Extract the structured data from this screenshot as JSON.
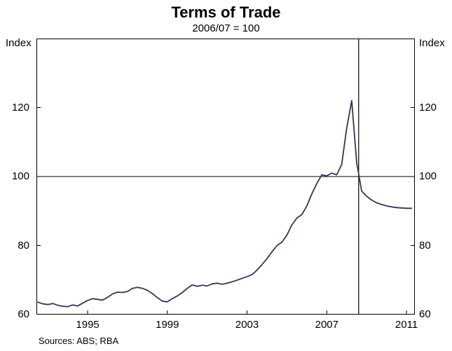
{
  "title": "Terms of Trade",
  "subtitle": "2006/07 = 100",
  "axis": {
    "left_unit": "Index",
    "right_unit": "Index",
    "y_tick_labels": [
      "120",
      "100",
      "80",
      "60"
    ],
    "x_tick_labels": [
      "1995",
      "1999",
      "2003",
      "2007",
      "2011"
    ]
  },
  "footer": {
    "sources": "Sources: ABS; RBA"
  },
  "chart_data": {
    "type": "line",
    "title": "Terms of Trade",
    "subtitle": "2006/07 = 100",
    "ylabel": "Index",
    "ylabel_right": "Index",
    "ylim": [
      60,
      140
    ],
    "xlim": [
      1992.43,
      2011.42
    ],
    "yticks": [
      60,
      80,
      100,
      120
    ],
    "xticks": [
      1995,
      1999,
      2003,
      2007,
      2011
    ],
    "grid": "off",
    "legend": "none",
    "reference_lines": {
      "horizontal_y": 100,
      "vertical_x": 2008.6
    },
    "line_color": "#35355a",
    "axis_color": "#000000",
    "series": [
      {
        "name": "Terms of trade (quarterly)",
        "x": [
          1992.5,
          1992.75,
          1993.0,
          1993.25,
          1993.5,
          1993.75,
          1994.0,
          1994.25,
          1994.5,
          1994.75,
          1995.0,
          1995.25,
          1995.5,
          1995.75,
          1996.0,
          1996.25,
          1996.5,
          1996.75,
          1997.0,
          1997.25,
          1997.5,
          1997.75,
          1998.0,
          1998.25,
          1998.5,
          1998.75,
          1999.0,
          1999.25,
          1999.5,
          1999.75,
          2000.0,
          2000.25,
          2000.5,
          2000.75,
          2001.0,
          2001.25,
          2001.5,
          2001.75,
          2002.0,
          2002.25,
          2002.5,
          2002.75,
          2003.0,
          2003.25,
          2003.5,
          2003.75,
          2004.0,
          2004.25,
          2004.5,
          2004.75,
          2005.0,
          2005.25,
          2005.5,
          2005.75,
          2006.0,
          2006.25,
          2006.5,
          2006.75,
          2007.0,
          2007.25,
          2007.5,
          2007.75,
          2008.0,
          2008.25,
          2008.5,
          2008.75,
          2009.0,
          2009.25,
          2009.5,
          2009.75,
          2010.0,
          2010.25,
          2010.5,
          2010.75,
          2011.0,
          2011.25
        ],
        "y": [
          63.6,
          63.1,
          62.9,
          63.2,
          62.7,
          62.4,
          62.3,
          62.8,
          62.5,
          63.3,
          64.1,
          64.6,
          64.4,
          64.2,
          65.0,
          66.0,
          66.5,
          66.4,
          66.7,
          67.6,
          67.9,
          67.6,
          67.0,
          66.1,
          64.9,
          63.9,
          63.7,
          64.6,
          65.4,
          66.4,
          67.6,
          68.6,
          68.2,
          68.5,
          68.3,
          68.9,
          69.1,
          68.8,
          69.1,
          69.5,
          70.0,
          70.5,
          71.0,
          71.6,
          72.9,
          74.5,
          76.2,
          78.2,
          80.0,
          81.0,
          83.0,
          86.0,
          88.0,
          89.0,
          91.5,
          95.0,
          98.0,
          100.5,
          100.2,
          101.0,
          100.5,
          103.5,
          114.0,
          122.0,
          104.0,
          95.8,
          94.3,
          93.2,
          92.4,
          91.9,
          91.5,
          91.2,
          91.0,
          90.9,
          90.8,
          90.8
        ]
      }
    ]
  }
}
